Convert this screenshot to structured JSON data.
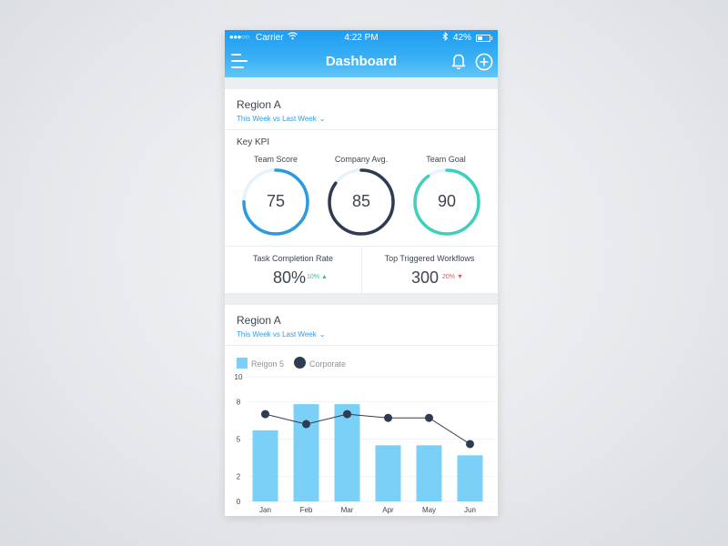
{
  "status_bar": {
    "signal": "●●●○○",
    "carrier": "Carrier",
    "time": "4:22 PM",
    "battery": "42%"
  },
  "header": {
    "title": "Dashboard"
  },
  "kpi_card": {
    "region": "Region A",
    "period": "This Week vs Last Week",
    "section_title": "Key KPI",
    "gauges": [
      {
        "label": "Team Score",
        "value": "75",
        "percent": 75,
        "color": "#2a9be0"
      },
      {
        "label": "Company Avg.",
        "value": "85",
        "percent": 85,
        "color": "#2f3b50"
      },
      {
        "label": "Team Goal",
        "value": "90",
        "percent": 90,
        "color": "#3fcfbd"
      }
    ],
    "stats": [
      {
        "label": "Task Completion Rate",
        "value": "80%",
        "delta": "10%",
        "trend": "up"
      },
      {
        "label": "Top Triggered Workflows",
        "value": "300",
        "delta": "20%",
        "trend": "down"
      }
    ]
  },
  "chart_card": {
    "region": "Region A",
    "period": "This Week vs Last Week",
    "chart_data": {
      "type": "bar",
      "categories": [
        "Jan",
        "Feb",
        "Mar",
        "Apr",
        "May",
        "Jun"
      ],
      "ylim": [
        0,
        10
      ],
      "yticks": [
        "0",
        "2",
        "5",
        "8",
        "10"
      ],
      "grid": true,
      "legend_position": "top-left",
      "series": [
        {
          "name": "Reigon 5",
          "type": "bar",
          "color": "#7ad0f7",
          "values": [
            5.7,
            7.8,
            7.8,
            4.5,
            4.5,
            3.7
          ]
        },
        {
          "name": "Corporate",
          "type": "line",
          "color": "#2f3b50",
          "values": [
            7.0,
            6.2,
            7.0,
            6.7,
            6.7,
            4.6
          ]
        }
      ]
    }
  }
}
